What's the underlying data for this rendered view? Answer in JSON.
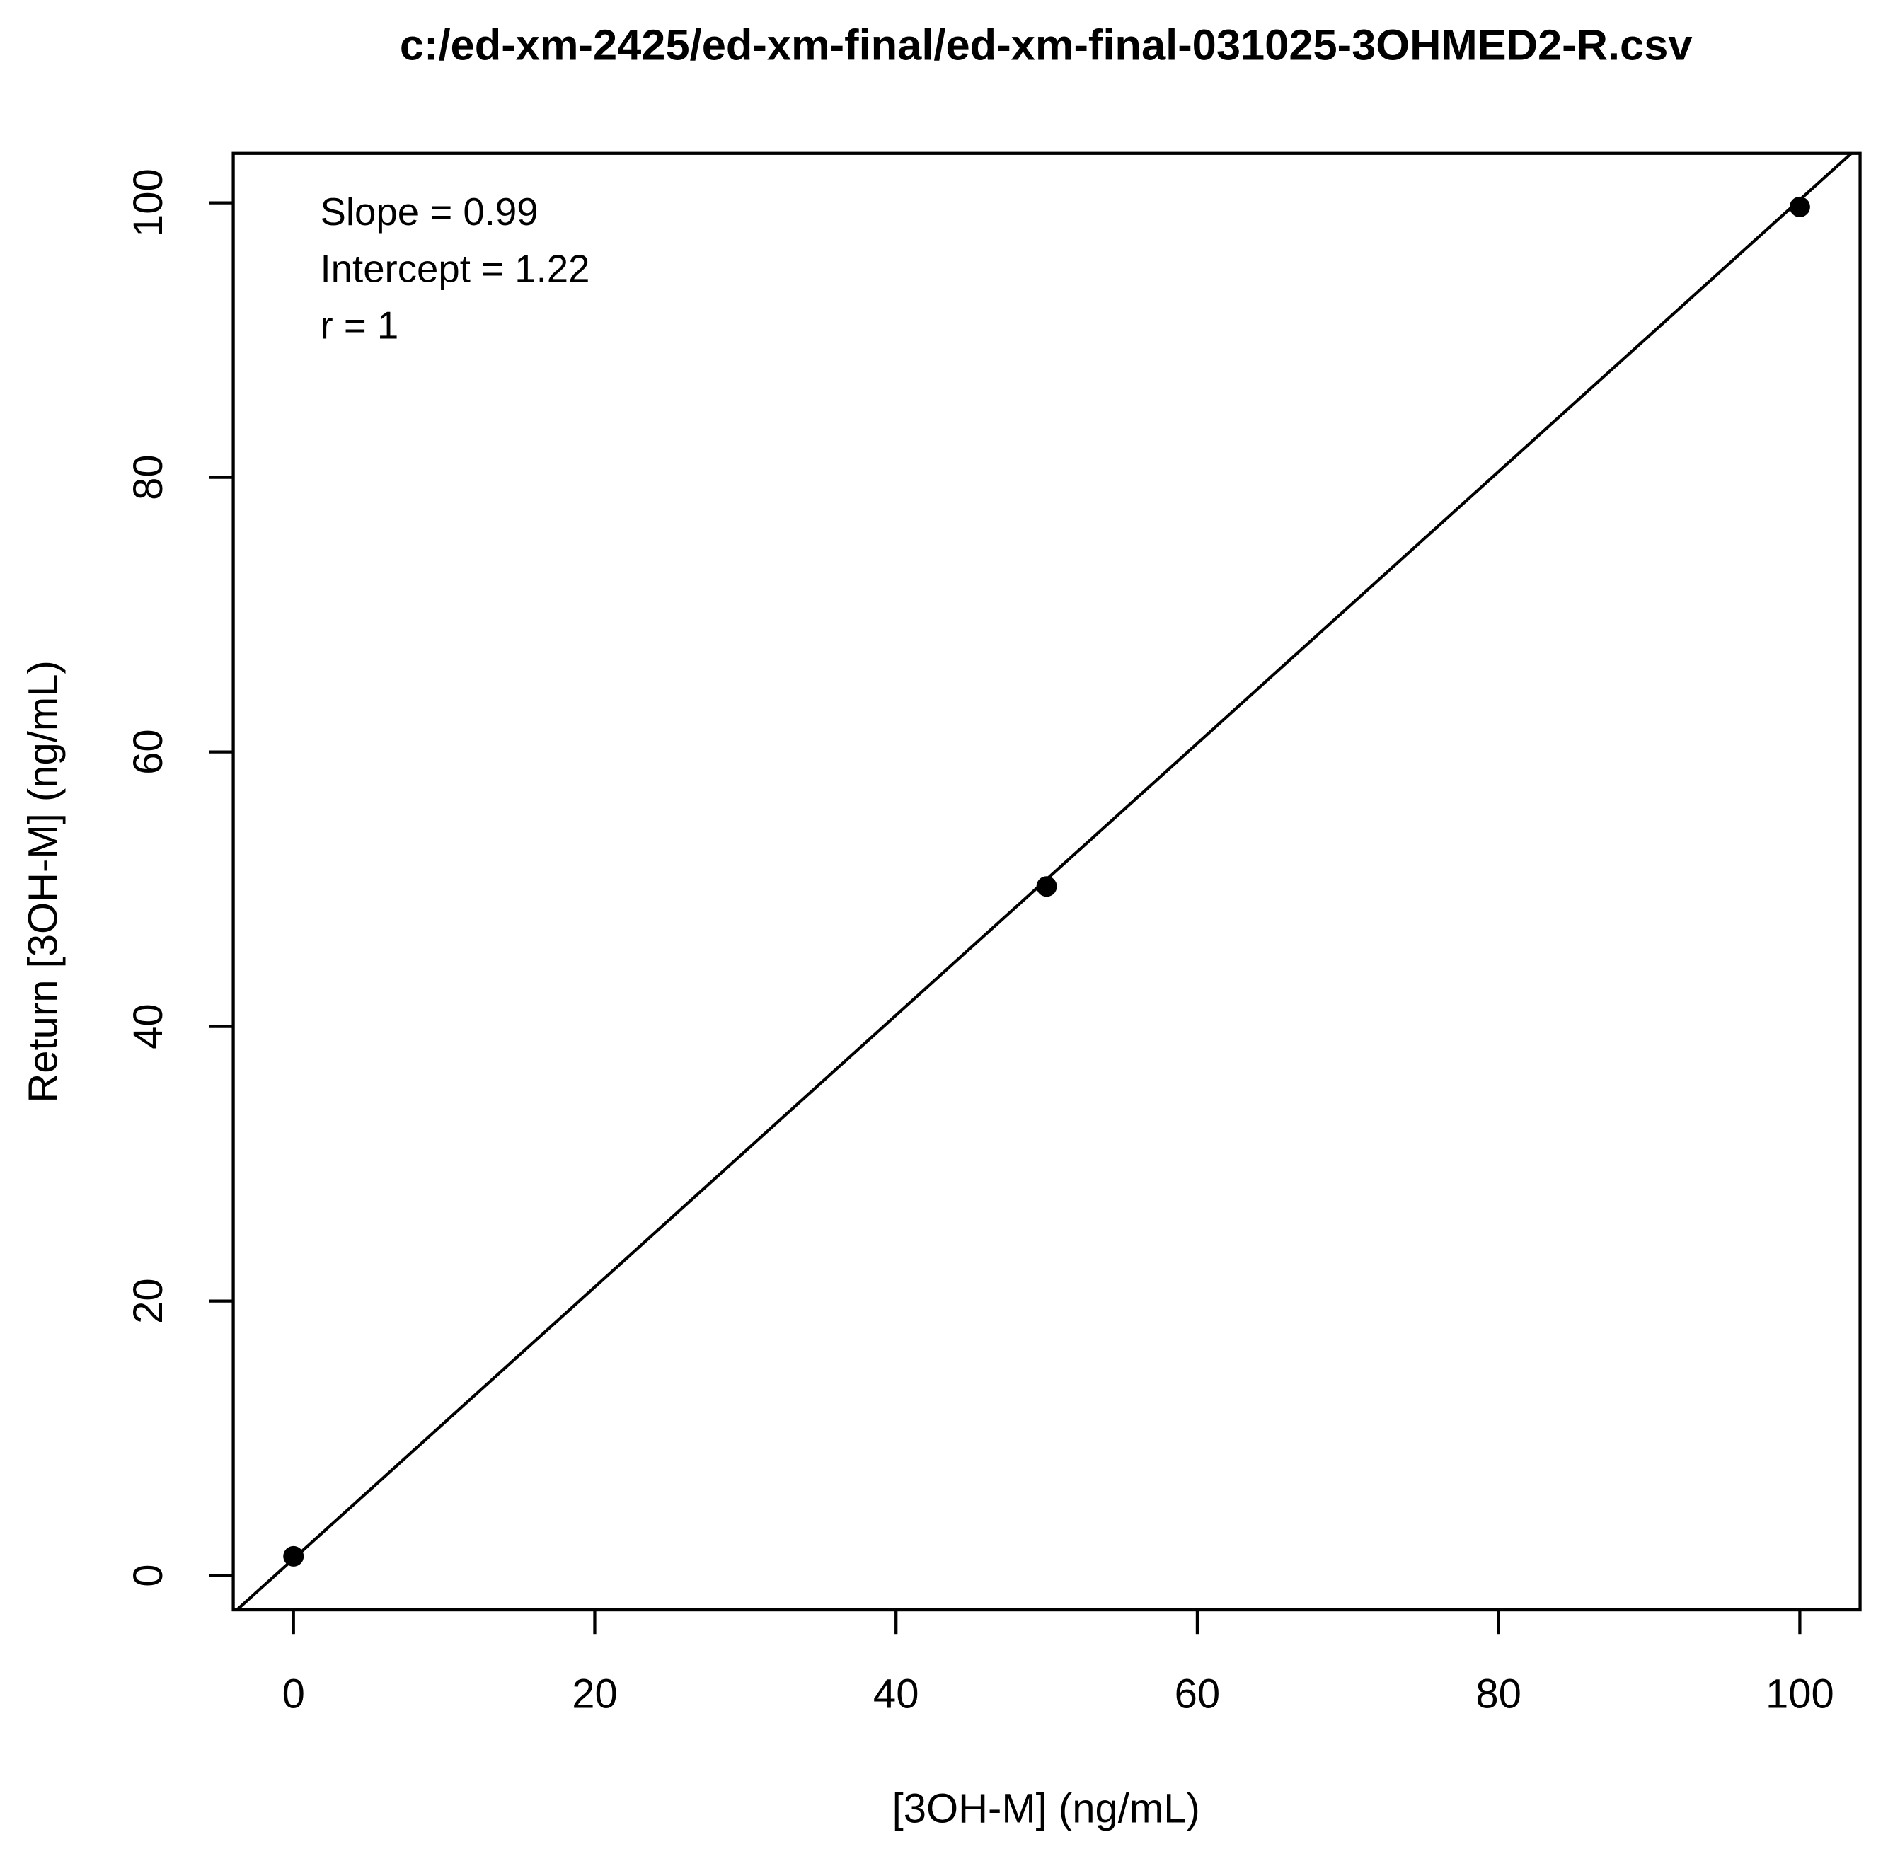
{
  "chart_data": {
    "type": "scatter",
    "title": "c:/ed-xm-2425/ed-xm-final/ed-xm-final-031025-3OHMED2-R.csv",
    "x_label": "[3OH-M] (ng/mL)",
    "y_label": "Return [3OH-M] (ng/mL)",
    "x": [
      0,
      50,
      100
    ],
    "values": [
      1.4,
      50.2,
      99.7
    ],
    "color": "#000000",
    "fit": {
      "slope": {
        "value": 0.99,
        "label": "Slope = 0.99"
      },
      "intercept": {
        "value": 1.22,
        "label": "Intercept = 1.22"
      },
      "r": {
        "value": 1,
        "label": "r = 1"
      }
    },
    "xlim": [
      -4,
      104
    ],
    "xticks": [
      0,
      20,
      40,
      60,
      80,
      100
    ],
    "ylim": [
      -2.5,
      103.6
    ],
    "yticks": [
      0,
      20,
      40,
      60,
      80,
      100
    ],
    "grid": false
  }
}
